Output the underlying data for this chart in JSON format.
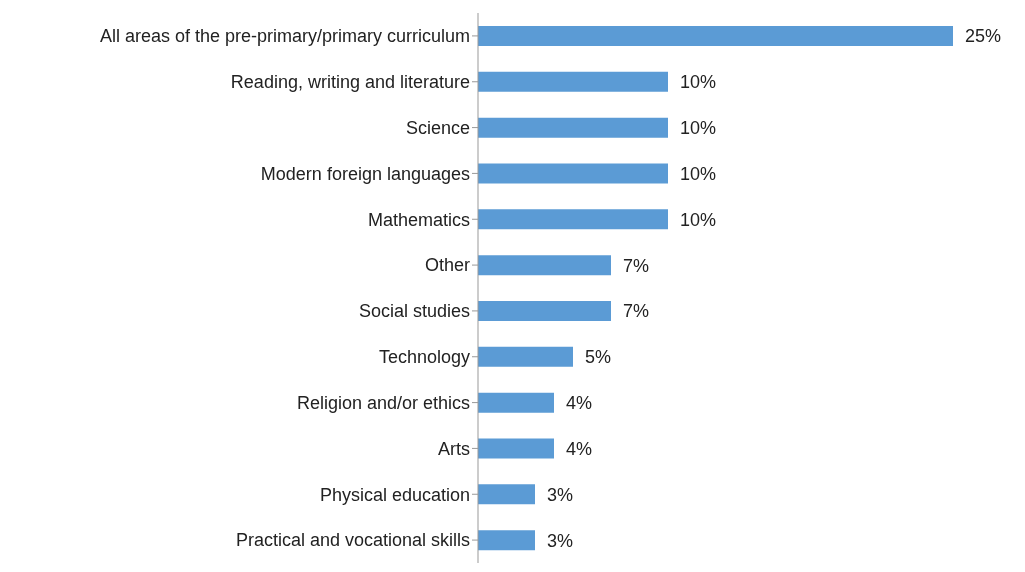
{
  "chart_data": {
    "type": "bar",
    "orientation": "horizontal",
    "categories": [
      "All areas of the pre-primary/primary curriculum",
      "Reading, writing and literature",
      "Science",
      "Modern foreign languages",
      "Mathematics",
      "Other",
      "Social studies",
      "Technology",
      "Religion and/or ethics",
      "Arts",
      "Physical education",
      "Practical and vocational skills"
    ],
    "values": [
      25,
      10,
      10,
      10,
      10,
      7,
      7,
      5,
      4,
      4,
      3,
      3
    ],
    "value_labels": [
      "25%",
      "10%",
      "10%",
      "10%",
      "10%",
      "7%",
      "7%",
      "5%",
      "4%",
      "4%",
      "3%",
      "3%"
    ],
    "color": "#5b9bd5",
    "tick_labels": "y",
    "grid": false,
    "legend": false
  }
}
